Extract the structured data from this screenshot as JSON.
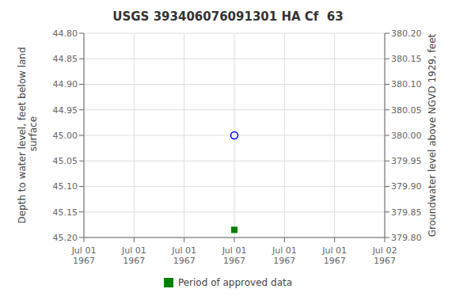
{
  "chart_data": {
    "type": "scatter",
    "title": "USGS 393406076091301 HA Cf  63",
    "ylabel": "Depth to water level, feet below land\n surface",
    "y2label": "Groundwater level above NGVD 1929, feet",
    "categories": [
      "Jul 01\n1967",
      "Jul 01\n1967",
      "Jul 01\n1967",
      "Jul 01\n1967",
      "Jul 01\n1967",
      "Jul 01\n1967",
      "Jul 02\n1967"
    ],
    "series": [
      {
        "color": "#0000ff",
        "marker": "circle",
        "values": [
          null,
          null,
          null,
          45.0,
          null,
          null,
          null
        ]
      },
      {
        "name": "Period of approved data",
        "color": "#008000",
        "marker": "square",
        "values": [
          null,
          null,
          null,
          45.185,
          null,
          null,
          null
        ]
      }
    ],
    "ylim": [
      45.2,
      44.8
    ],
    "yticks": [
      {
        "value": 44.8,
        "label": "44.80"
      },
      {
        "value": 44.85,
        "label": "44.85"
      },
      {
        "value": 44.9,
        "label": "44.90"
      },
      {
        "value": 44.95,
        "label": "44.95"
      },
      {
        "value": 45.0,
        "label": "45.00"
      },
      {
        "value": 45.05,
        "label": "45.05"
      },
      {
        "value": 45.1,
        "label": "45.10"
      },
      {
        "value": 45.15,
        "label": "45.15"
      },
      {
        "value": 45.2,
        "label": "45.20"
      }
    ],
    "y2lim": [
      379.8,
      380.2
    ],
    "y2ticks": [
      {
        "value": 380.2,
        "label": "380.20"
      },
      {
        "value": 380.15,
        "label": "380.15"
      },
      {
        "value": 380.1,
        "label": "380.10"
      },
      {
        "value": 380.05,
        "label": "380.05"
      },
      {
        "value": 380.0,
        "label": "380.00"
      },
      {
        "value": 379.95,
        "label": "379.95"
      },
      {
        "value": 379.9,
        "label": "379.90"
      },
      {
        "value": 379.85,
        "label": "379.85"
      },
      {
        "value": 379.8,
        "label": "379.80"
      }
    ],
    "grid": true,
    "legend": "bottom"
  }
}
